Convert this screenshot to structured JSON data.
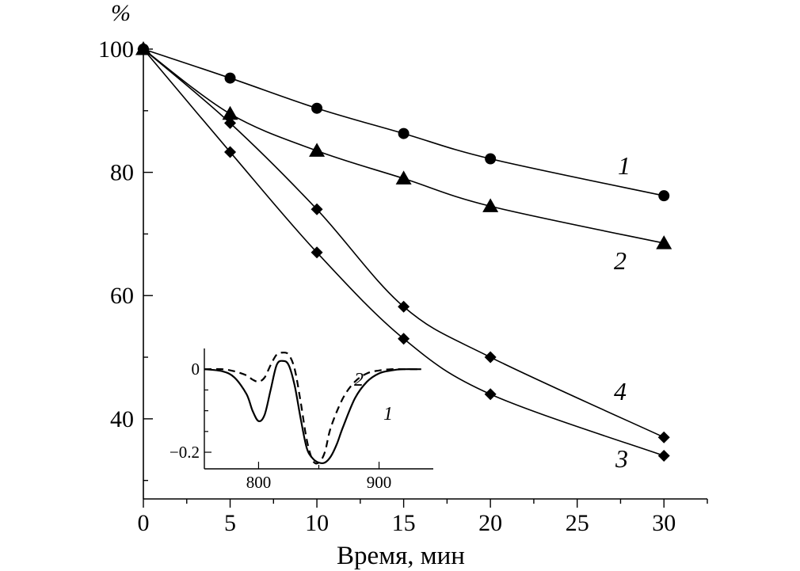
{
  "chart_data": [
    {
      "type": "line",
      "title": "",
      "xlabel": "Время, мин",
      "ylabel": "%",
      "xlim": [
        0,
        32.5
      ],
      "ylim": [
        27,
        100
      ],
      "x_ticks": [
        0,
        5,
        10,
        15,
        20,
        25,
        30
      ],
      "y_ticks": [
        40,
        60,
        80,
        100
      ],
      "series": [
        {
          "name": "1",
          "marker": "circle",
          "x": [
            0,
            5,
            10,
            15,
            20,
            30
          ],
          "y": [
            100,
            95.3,
            90.4,
            86.3,
            82.2,
            76.2
          ]
        },
        {
          "name": "2",
          "marker": "triangle",
          "x": [
            0,
            5,
            10,
            15,
            20,
            30
          ],
          "y": [
            100,
            89.5,
            83.5,
            79.0,
            74.5,
            68.5
          ]
        },
        {
          "name": "3",
          "marker": "diamond",
          "x": [
            0,
            5,
            10,
            15,
            20,
            30
          ],
          "y": [
            100,
            83.3,
            67.0,
            53.0,
            44.0,
            34.0
          ]
        },
        {
          "name": "4",
          "marker": "diamond",
          "x": [
            0,
            5,
            10,
            15,
            20,
            30
          ],
          "y": [
            100,
            88.0,
            74.0,
            58.2,
            50.0,
            37.0
          ]
        }
      ]
    },
    {
      "type": "line",
      "title": "",
      "xlabel": "",
      "ylabel": "",
      "xlim": [
        755,
        945
      ],
      "ylim": [
        -0.24,
        0.05
      ],
      "x_ticks": [
        800,
        900
      ],
      "y_ticks": [
        0,
        -0.2
      ],
      "x_tick_labels": [
        "800",
        "900"
      ],
      "y_tick_labels": [
        "0",
        "−0.2"
      ],
      "series": [
        {
          "name": "1",
          "style": "solid",
          "x": [
            755,
            770,
            780,
            790,
            795,
            800,
            805,
            810,
            815,
            820,
            825,
            830,
            835,
            840,
            845,
            850,
            855,
            860,
            865,
            870,
            880,
            890,
            900,
            910,
            920,
            935
          ],
          "y": [
            0,
            -0.005,
            -0.02,
            -0.06,
            -0.1,
            -0.125,
            -0.11,
            -0.05,
            0.01,
            0.02,
            0.01,
            -0.04,
            -0.12,
            -0.19,
            -0.215,
            -0.225,
            -0.225,
            -0.21,
            -0.18,
            -0.14,
            -0.07,
            -0.03,
            -0.01,
            -0.003,
            0,
            0
          ]
        },
        {
          "name": "2",
          "style": "dashed",
          "x": [
            755,
            770,
            780,
            790,
            795,
            800,
            805,
            810,
            815,
            820,
            825,
            830,
            835,
            840,
            845,
            850,
            855,
            860,
            870,
            880,
            890,
            900,
            910,
            920,
            935
          ],
          "y": [
            0,
            0,
            -0.005,
            -0.015,
            -0.025,
            -0.03,
            -0.02,
            0.01,
            0.035,
            0.04,
            0.035,
            0,
            -0.08,
            -0.17,
            -0.22,
            -0.225,
            -0.2,
            -0.14,
            -0.07,
            -0.03,
            -0.01,
            -0.003,
            0,
            0,
            0
          ]
        }
      ]
    }
  ],
  "labels": {
    "x_axis_title": "Время, мин",
    "y_axis_unit": "%",
    "curve_1": "1",
    "curve_2": "2",
    "curve_3": "3",
    "curve_4": "4",
    "inset_curve_1": "1",
    "inset_curve_2": "2"
  }
}
